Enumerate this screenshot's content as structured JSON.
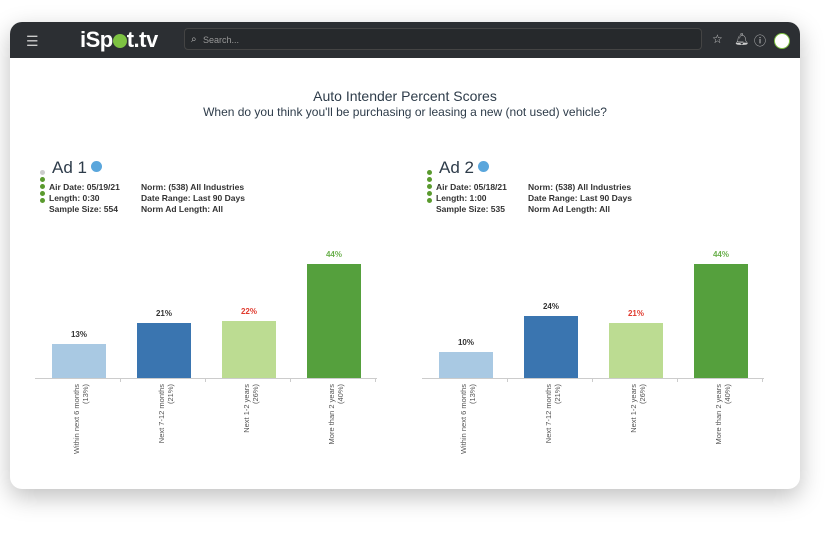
{
  "header": {
    "menu_icon": "hamburger-icon",
    "logo": "iSpot.tv",
    "search_placeholder": "Search...",
    "icons": [
      "star-icon",
      "bell-icon",
      "info-icon",
      "user-icon"
    ]
  },
  "title": "Auto Intender Percent Scores",
  "subtitle": "When do you think you'll be purchasing or leasing a new (not used) vehicle?",
  "colors": {
    "bar1": "#a9c9e3",
    "bar2": "#3a75b0",
    "bar3": "#bcdc92",
    "bar4": "#55a03d",
    "red": "#e03a2e",
    "green": "#6ab04c"
  },
  "ads": [
    {
      "name": "Ad 1",
      "air_date": "Air Date: 05/19/21",
      "length": "Length: 0:30",
      "sample": "Sample Size: 554",
      "norm": "Norm: (538) All Industries",
      "range": "Date Range: Last 90 Days",
      "norm_len": "Norm Ad Length: All"
    },
    {
      "name": "Ad 2",
      "air_date": "Air Date: 05/18/21",
      "length": "Length: 1:00",
      "sample": "Sample Size: 535",
      "norm": "Norm: (538) All Industries",
      "range": "Date Range: Last 90 Days",
      "norm_len": "Norm Ad Length: All"
    }
  ],
  "chart_data": [
    {
      "type": "bar",
      "categories": [
        "Within next 6 months",
        "Next 7-12 months",
        "Next 1-2 years",
        "More than 2 years"
      ],
      "norms": [
        "(13%)",
        "(21%)",
        "(26%)",
        "(40%)"
      ],
      "values": [
        13,
        21,
        22,
        44
      ],
      "labels": [
        "13%",
        "21%",
        "22%",
        "44%"
      ],
      "label_colors": [
        "#333",
        "#333",
        "#e03a2e",
        "#6ab04c"
      ]
    },
    {
      "type": "bar",
      "categories": [
        "Within next 6 months",
        "Next 7-12 months",
        "Next 1-2 years",
        "More than 2 years"
      ],
      "norms": [
        "(13%)",
        "(21%)",
        "(26%)",
        "(40%)"
      ],
      "values": [
        10,
        24,
        21,
        44
      ],
      "labels": [
        "10%",
        "24%",
        "21%",
        "44%"
      ],
      "label_colors": [
        "#333",
        "#333",
        "#e03a2e",
        "#6ab04c"
      ]
    }
  ]
}
